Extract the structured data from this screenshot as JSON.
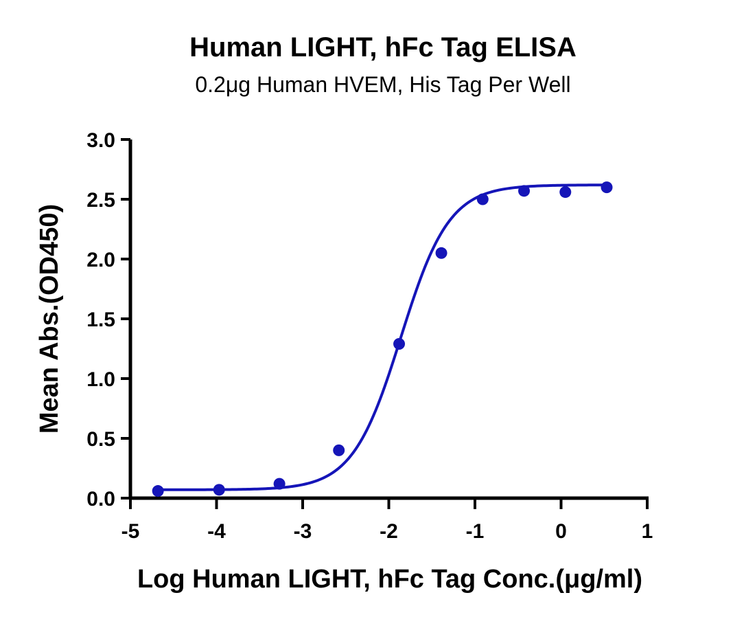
{
  "chart_data": {
    "type": "scatter",
    "title": "Human LIGHT, hFc Tag ELISA",
    "subtitle": "0.2μg Human HVEM, His Tag Per Well",
    "xlabel": "Log Human LIGHT, hFc Tag Conc.(μg/ml)",
    "ylabel": "Mean Abs.(OD450)",
    "xlim": [
      -5,
      1
    ],
    "ylim": [
      0,
      3.0
    ],
    "xticks": [
      -5,
      -4,
      -3,
      -2,
      -1,
      0,
      1
    ],
    "xtick_labels": [
      "-5",
      "-4",
      "-3",
      "-2",
      "-1",
      "0",
      "1"
    ],
    "yticks": [
      0,
      0.5,
      1.0,
      1.5,
      2.0,
      2.5,
      3.0
    ],
    "ytick_labels": [
      "0.0",
      "0.5",
      "1.0",
      "1.5",
      "2.0",
      "2.5",
      "3.0"
    ],
    "grid": false,
    "series": [
      {
        "color": "#1515b8",
        "points": [
          {
            "x": -4.68,
            "y": 0.06
          },
          {
            "x": -3.97,
            "y": 0.07
          },
          {
            "x": -3.27,
            "y": 0.12
          },
          {
            "x": -2.58,
            "y": 0.4
          },
          {
            "x": -1.88,
            "y": 1.29
          },
          {
            "x": -1.39,
            "y": 2.05
          },
          {
            "x": -0.91,
            "y": 2.5
          },
          {
            "x": -0.43,
            "y": 2.57
          },
          {
            "x": 0.05,
            "y": 2.56
          },
          {
            "x": 0.53,
            "y": 2.6
          }
        ],
        "fit": {
          "model": "4PL",
          "bottom": 0.07,
          "top": 2.62,
          "log_ec50": -1.86,
          "hill_slope": 1.55
        }
      }
    ]
  }
}
